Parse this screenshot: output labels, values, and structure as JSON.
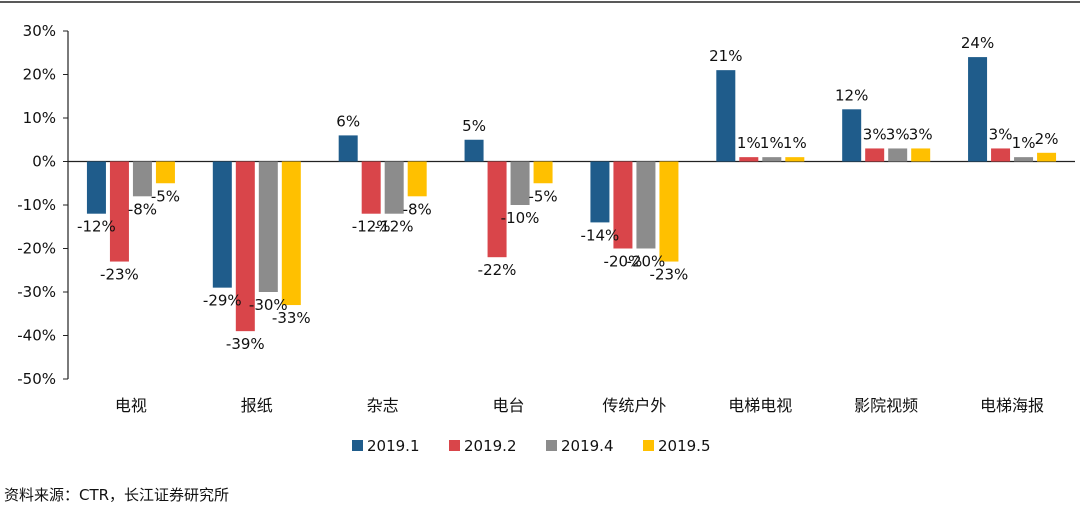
{
  "chart_data": {
    "type": "bar",
    "categories": [
      "电视",
      "报纸",
      "杂志",
      "电台",
      "传统户外",
      "电梯电视",
      "影院视频",
      "电梯海报"
    ],
    "series": [
      {
        "name": "2019.1",
        "color": "#1f5c8b",
        "values": [
          -12,
          -29,
          6,
          5,
          -14,
          21,
          12,
          24
        ]
      },
      {
        "name": "2019.2",
        "color": "#d9454a",
        "values": [
          -23,
          -39,
          -12,
          -22,
          -20,
          1,
          3,
          3
        ]
      },
      {
        "name": "2019.4",
        "color": "#8c8c8c",
        "values": [
          -8,
          -30,
          -12,
          -10,
          -20,
          1,
          3,
          1
        ]
      },
      {
        "name": "2019.5",
        "color": "#ffc000",
        "values": [
          -5,
          -33,
          -8,
          -5,
          -23,
          1,
          3,
          2
        ]
      }
    ],
    "ylim": [
      -50,
      30
    ],
    "yticks": [
      30,
      20,
      10,
      0,
      -10,
      -20,
      -30,
      -40,
      -50
    ],
    "ytick_labels": [
      "30%",
      "20%",
      "10%",
      "0%",
      "-10%",
      "-20%",
      "-30%",
      "-40%",
      "-50%"
    ],
    "value_suffix": "%",
    "legend_position": "bottom",
    "grid": false
  },
  "source": "资料来源：CTR，长江证券研究所"
}
